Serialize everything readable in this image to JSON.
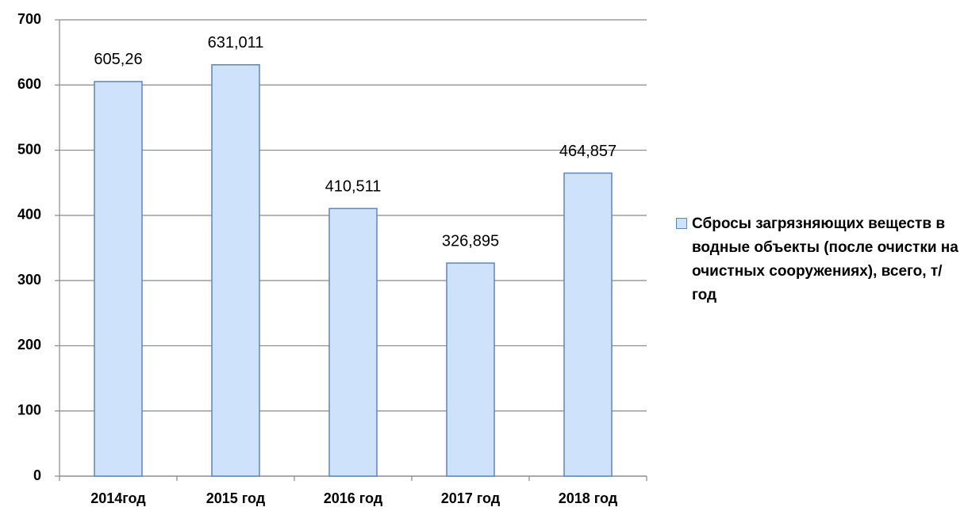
{
  "chart_data": {
    "type": "bar",
    "categories": [
      "2014год",
      "2015 год",
      "2016 год",
      "2017 год",
      "2018 год"
    ],
    "series": [
      {
        "name": "Сбросы загрязняющих веществ в водные объекты (после очистки на очистных сооружениях), всего, т/год",
        "color": "#cfe2fb",
        "values": [
          605.26,
          631.011,
          410.511,
          326.895,
          464.857
        ],
        "value_labels": [
          "605,26",
          "631,011",
          "410,511",
          "326,895",
          "464,857"
        ]
      }
    ],
    "ylim": [
      0,
      700
    ],
    "yticks": [
      0,
      100,
      200,
      300,
      400,
      500,
      600,
      700
    ],
    "grid": true,
    "legend": "right"
  }
}
